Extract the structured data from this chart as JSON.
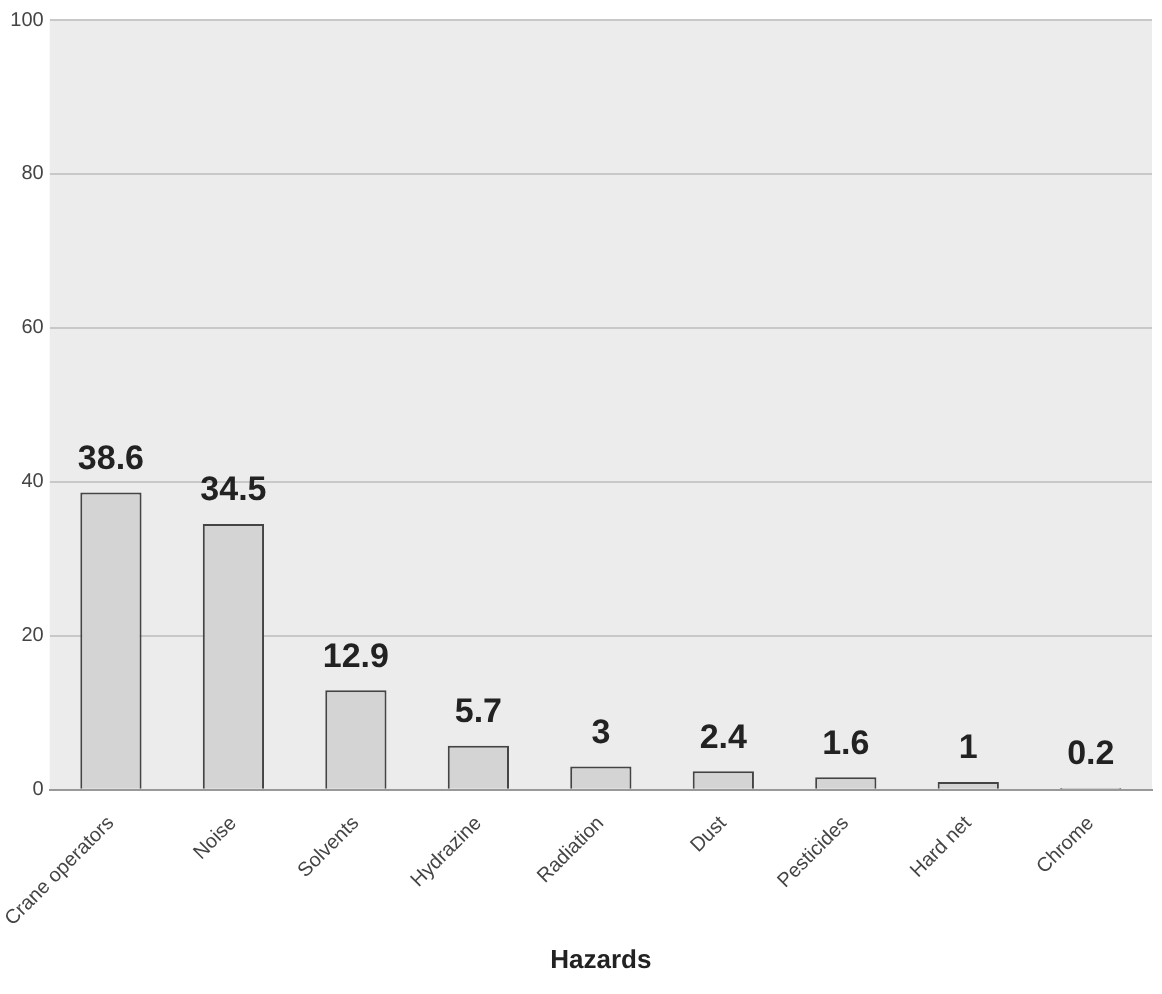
{
  "chart_data": {
    "type": "bar",
    "xlabel": "Hazards",
    "categories": [
      "Crane operators",
      "Noise",
      "Solvents",
      "Hydrazine",
      "Radiation",
      "Dust",
      "Pesticides",
      "Hard net",
      "Chrome"
    ],
    "values": [
      38.6,
      34.5,
      12.9,
      5.7,
      3,
      2.4,
      1.6,
      1,
      0.2
    ],
    "color": "#d4d4d4",
    "ylim": [
      0,
      100
    ],
    "yticks": [
      0,
      20,
      40,
      60,
      80,
      100
    ],
    "grid": "y",
    "data_labels": true,
    "legend": false
  }
}
